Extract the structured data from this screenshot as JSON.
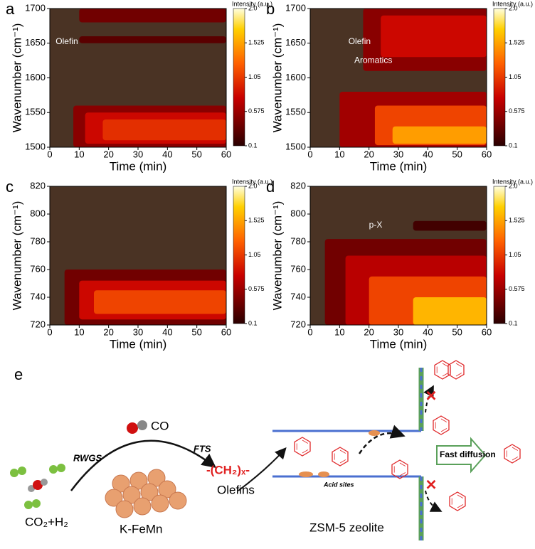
{
  "chart_data": [
    {
      "type": "contour",
      "panel": "a",
      "xlabel": "Time (min)",
      "ylabel": "Wavenumber (cm⁻¹)",
      "colorbar_label": "Intensity (a.u.)",
      "xlim": [
        0,
        60
      ],
      "xticks": [
        0,
        10,
        20,
        30,
        40,
        50,
        60
      ],
      "ylim": [
        1500,
        1700
      ],
      "yticks": [
        1500,
        1550,
        1600,
        1650,
        1700
      ],
      "clim": [
        0.1,
        2
      ],
      "cticks": [
        0.1,
        0.575,
        1.05,
        1.525,
        {
          "value": 2,
          "label": "2.0"
        }
      ],
      "background": "#4a3324",
      "bands": [
        {
          "y": [
            1680,
            1700
          ],
          "x0": 10,
          "level": 0.4
        },
        {
          "y": [
            1650,
            1660
          ],
          "x0": 10,
          "level": 0.3
        },
        {
          "y": [
            1500,
            1560
          ],
          "x0": 8,
          "level": 0.5
        },
        {
          "y": [
            1505,
            1550
          ],
          "x0": 12,
          "level": 0.8
        },
        {
          "y": [
            1510,
            1540
          ],
          "x0": 18,
          "level": 1.0
        }
      ],
      "annotations": [
        {
          "text": "Olefin",
          "x": 2,
          "y": 1652
        }
      ]
    },
    {
      "type": "contour",
      "panel": "b",
      "xlabel": "Time (min)",
      "ylabel": "Wavenumber (cm⁻¹)",
      "colorbar_label": "Intensity (a.u.)",
      "xlim": [
        0,
        60
      ],
      "xticks": [
        0,
        10,
        20,
        30,
        40,
        50,
        60
      ],
      "ylim": [
        1500,
        1700
      ],
      "yticks": [
        1500,
        1550,
        1600,
        1650,
        1700
      ],
      "clim": [
        0.1,
        2
      ],
      "cticks": [
        0.1,
        0.575,
        1.05,
        1.525,
        {
          "value": 2,
          "label": "2.0"
        }
      ],
      "background": "#4a3324",
      "bands": [
        {
          "y": [
            1610,
            1700
          ],
          "x0": 18,
          "level": 0.5
        },
        {
          "y": [
            1630,
            1690
          ],
          "x0": 24,
          "level": 0.8
        },
        {
          "y": [
            1500,
            1580
          ],
          "x0": 10,
          "level": 0.6
        },
        {
          "y": [
            1503,
            1560
          ],
          "x0": 22,
          "level": 1.1
        },
        {
          "y": [
            1505,
            1530
          ],
          "x0": 28,
          "level": 1.5
        }
      ],
      "annotations": [
        {
          "text": "Olefin",
          "x": 13,
          "y": 1652
        },
        {
          "text": "Aromatics",
          "x": 15,
          "y": 1625
        }
      ]
    },
    {
      "type": "contour",
      "panel": "c",
      "xlabel": "Time (min)",
      "ylabel": "Wavenumber (cm⁻¹)",
      "colorbar_label": "Intensity (a.u.)",
      "xlim": [
        0,
        60
      ],
      "xticks": [
        0,
        10,
        20,
        30,
        40,
        50,
        60
      ],
      "ylim": [
        720,
        820
      ],
      "yticks": [
        720,
        740,
        760,
        780,
        800,
        820
      ],
      "clim": [
        0.1,
        2
      ],
      "cticks": [
        0.1,
        0.575,
        1.05,
        1.525,
        {
          "value": 2,
          "label": "2.0"
        }
      ],
      "background": "#4a3324",
      "bands": [
        {
          "y": [
            720,
            760
          ],
          "x0": 5,
          "level": 0.4
        },
        {
          "y": [
            724,
            752
          ],
          "x0": 10,
          "level": 0.8
        },
        {
          "y": [
            728,
            745
          ],
          "x0": 15,
          "level": 1.1
        }
      ],
      "annotations": []
    },
    {
      "type": "contour",
      "panel": "d",
      "xlabel": "Time (min)",
      "ylabel": "Wavenumber (cm⁻¹)",
      "colorbar_label": "Intensity (a.u.)",
      "xlim": [
        0,
        60
      ],
      "xticks": [
        0,
        10,
        20,
        30,
        40,
        50,
        60
      ],
      "ylim": [
        720,
        820
      ],
      "yticks": [
        720,
        740,
        760,
        780,
        800,
        820
      ],
      "clim": [
        0.1,
        2
      ],
      "cticks": [
        0.1,
        0.575,
        1.05,
        1.525,
        {
          "value": 2,
          "label": "2.0"
        }
      ],
      "background": "#4a3324",
      "bands": [
        {
          "y": [
            720,
            782
          ],
          "x0": 5,
          "level": 0.4
        },
        {
          "y": [
            720,
            770
          ],
          "x0": 12,
          "level": 0.7
        },
        {
          "y": [
            720,
            755
          ],
          "x0": 20,
          "level": 1.1
        },
        {
          "y": [
            720,
            740
          ],
          "x0": 35,
          "level": 1.6
        },
        {
          "y": [
            788,
            795
          ],
          "x0": 35,
          "level": 0.2
        }
      ],
      "annotations": [
        {
          "text": "p-X",
          "x": 20,
          "y": 792
        }
      ]
    }
  ],
  "schematic": {
    "label": "e",
    "rwgs": "RWGS",
    "co": "CO",
    "fts": "FTS",
    "chain": "-(CH₂)ₓ-",
    "olefins": "Olefins",
    "acid_sites": "Acid sites",
    "fast_diffusion": "Fast diffusion",
    "feed": "CO₂+H₂",
    "catalyst": "K-FeMn",
    "zeolite": "ZSM-5 zeolite"
  }
}
